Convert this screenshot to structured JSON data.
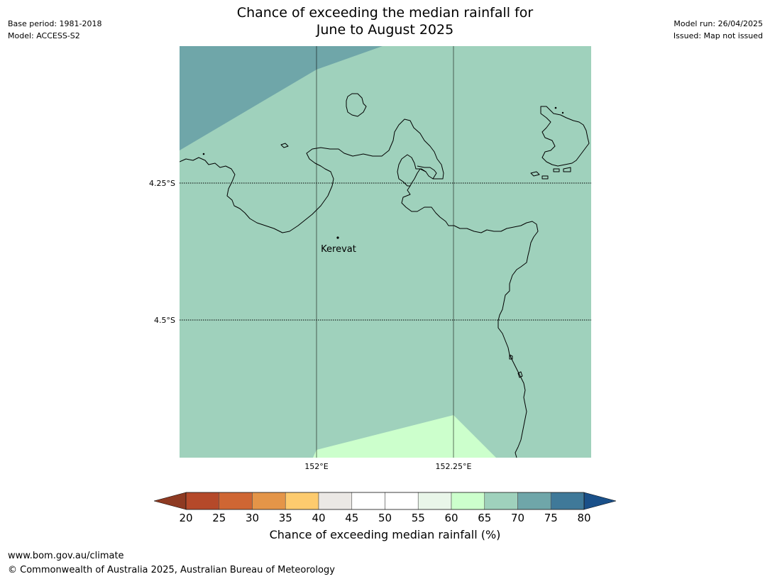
{
  "header": {
    "base_period": "Base period: 1981-2018",
    "model": "Model: ACCESS-S2",
    "title_line1": "Chance of exceeding the median rainfall for",
    "title_line2": "June to August 2025",
    "model_run": "Model run: 26/04/2025",
    "issued": "Issued: Map not issued"
  },
  "map": {
    "latitude_labels": [
      "4.25°S",
      "4.5°S"
    ],
    "longitude_labels": [
      "152°E",
      "152.25°E"
    ],
    "place": {
      "name": "Kerevat"
    },
    "colors": {
      "band_65_70": "#9fd1bc",
      "band_70_75": "#6fa6a9",
      "band_60_65": "#ccffcc",
      "coastline": "#000000",
      "gridline": "#000000"
    }
  },
  "colorbar": {
    "label": "Chance of exceeding median rainfall (%)",
    "ticks": [
      "20",
      "25",
      "30",
      "35",
      "40",
      "45",
      "50",
      "55",
      "60",
      "65",
      "70",
      "75",
      "80"
    ],
    "below_color": "#8e3a22",
    "above_color": "#1a5089",
    "colors": [
      "#b5492a",
      "#cf6633",
      "#e49548",
      "#fdcb6e",
      "#ebe8e5",
      "#ffffff",
      "#ffffff",
      "#e9f6e9",
      "#ccffcc",
      "#9fd1bc",
      "#6fa6a9",
      "#3f7999"
    ]
  },
  "footer": {
    "url": "www.bom.gov.au/climate",
    "copyright": "© Commonwealth of Australia 2025, Australian Bureau of Meteorology"
  }
}
